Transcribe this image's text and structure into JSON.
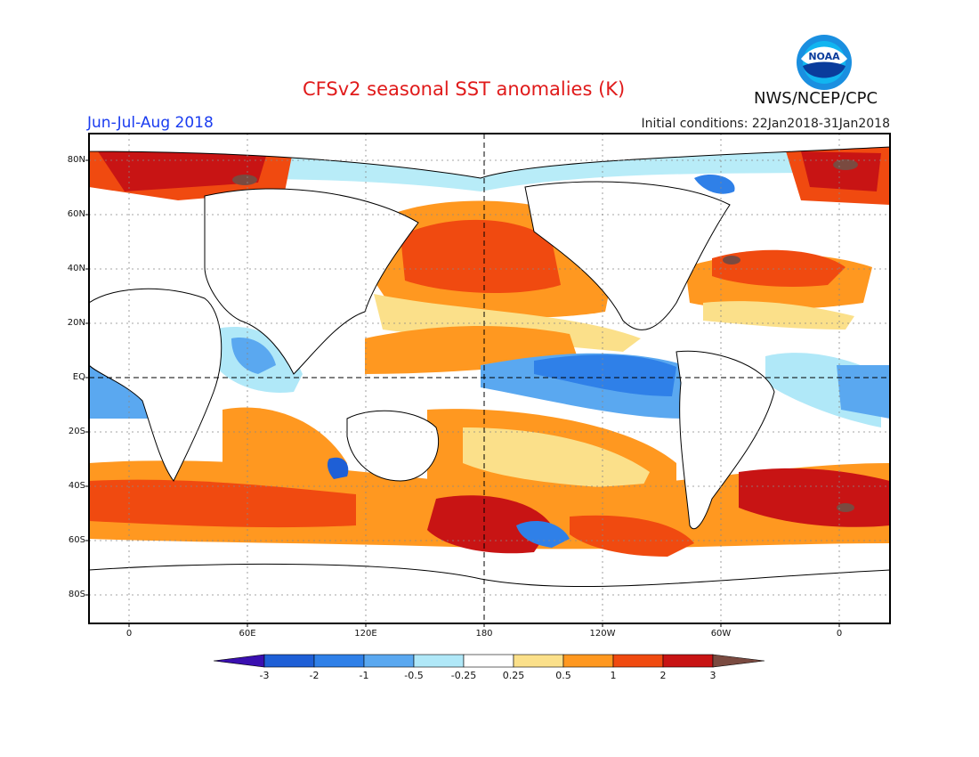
{
  "header": {
    "title": "CFSv2 seasonal SST anomalies (K)",
    "season": "Jun-Jul-Aug 2018",
    "initial_conditions": "Initial conditions: 22Jan2018-31Jan2018",
    "agency": "NWS/NCEP/CPC",
    "logo_icon": "noaa-logo-icon",
    "logo_text": "NOAA"
  },
  "map": {
    "lat_labels": [
      "80N",
      "60N",
      "40N",
      "20N",
      "EQ",
      "20S",
      "40S",
      "60S",
      "80S"
    ],
    "lon_labels": [
      "0",
      "60E",
      "120E",
      "180",
      "120W",
      "60W",
      "0"
    ],
    "land_color": "#ffffff",
    "grid": "dotted"
  },
  "colorbar": {
    "labels": [
      "-3",
      "-2",
      "-1",
      "-0.5",
      "-0.25",
      "0.25",
      "0.5",
      "1",
      "2",
      "3"
    ],
    "colors": [
      "#3a0fb0",
      "#1e5fd6",
      "#2f80e8",
      "#5aa8f0",
      "#b0e8f8",
      "#ffffff",
      "#fbe08a",
      "#ff9820",
      "#f04a10",
      "#c81414",
      "#b40000",
      "#7a4a40"
    ]
  }
}
